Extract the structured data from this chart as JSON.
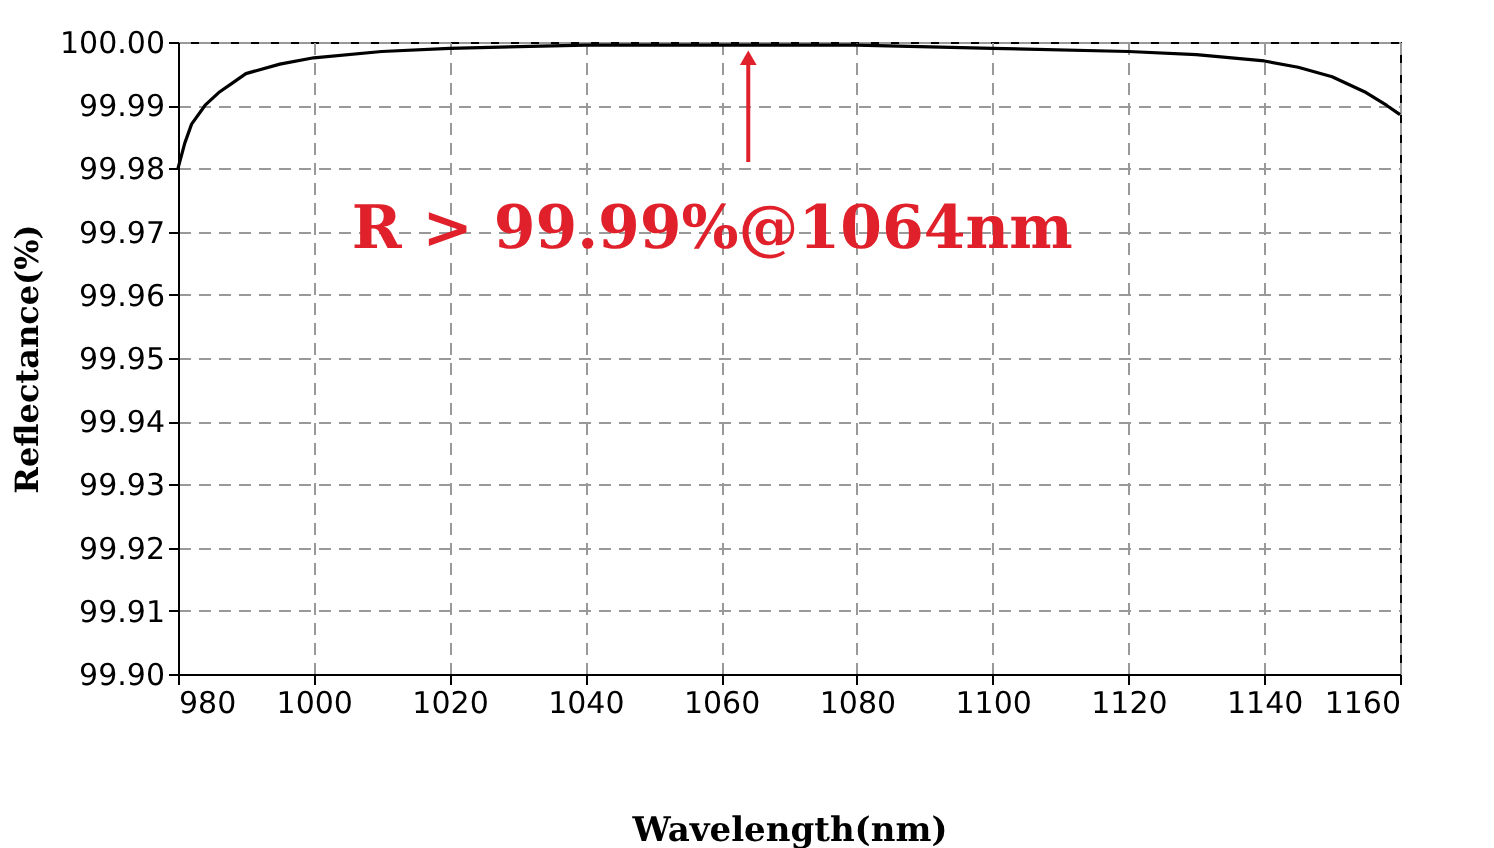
{
  "chart_data": {
    "type": "line",
    "xlabel": "Wavelength(nm)",
    "ylabel": "Reflectance(%)",
    "series": [
      {
        "color": "#000000",
        "x": [
          980,
          981,
          982,
          984,
          986,
          988,
          990,
          995,
          1000,
          1010,
          1020,
          1040,
          1060,
          1080,
          1100,
          1120,
          1130,
          1140,
          1145,
          1150,
          1155,
          1158,
          1160
        ],
        "values": [
          99.98,
          99.984,
          99.987,
          99.99,
          99.992,
          99.9935,
          99.995,
          99.9965,
          99.9975,
          99.9985,
          99.999,
          99.9995,
          99.9995,
          99.9995,
          99.999,
          99.9985,
          99.998,
          99.997,
          99.996,
          99.9945,
          99.992,
          99.99,
          99.9885
        ]
      }
    ],
    "xlim": [
      980,
      1160
    ],
    "xticks": [
      980,
      1000,
      1020,
      1040,
      1060,
      1080,
      1100,
      1120,
      1140,
      1160
    ],
    "ylim": [
      99.9,
      100.0
    ],
    "yticks": [
      {
        "value": 99.9,
        "label": "99.90"
      },
      {
        "value": 99.91,
        "label": "99.91"
      },
      {
        "value": 99.92,
        "label": "99.92"
      },
      {
        "value": 99.93,
        "label": "99.93"
      },
      {
        "value": 99.94,
        "label": "99.94"
      },
      {
        "value": 99.95,
        "label": "99.95"
      },
      {
        "value": 99.96,
        "label": "99.96"
      },
      {
        "value": 99.97,
        "label": "99.97"
      },
      {
        "value": 99.98,
        "label": "99.98"
      },
      {
        "value": 99.99,
        "label": "99.99"
      },
      {
        "value": 100.0,
        "label": "100.00"
      }
    ],
    "grid": true,
    "line_style": "solid",
    "marker": "none",
    "annotations": [
      {
        "text": "R > 99.99%@1064nm",
        "x": 1064,
        "y": 99.9975
      }
    ]
  }
}
